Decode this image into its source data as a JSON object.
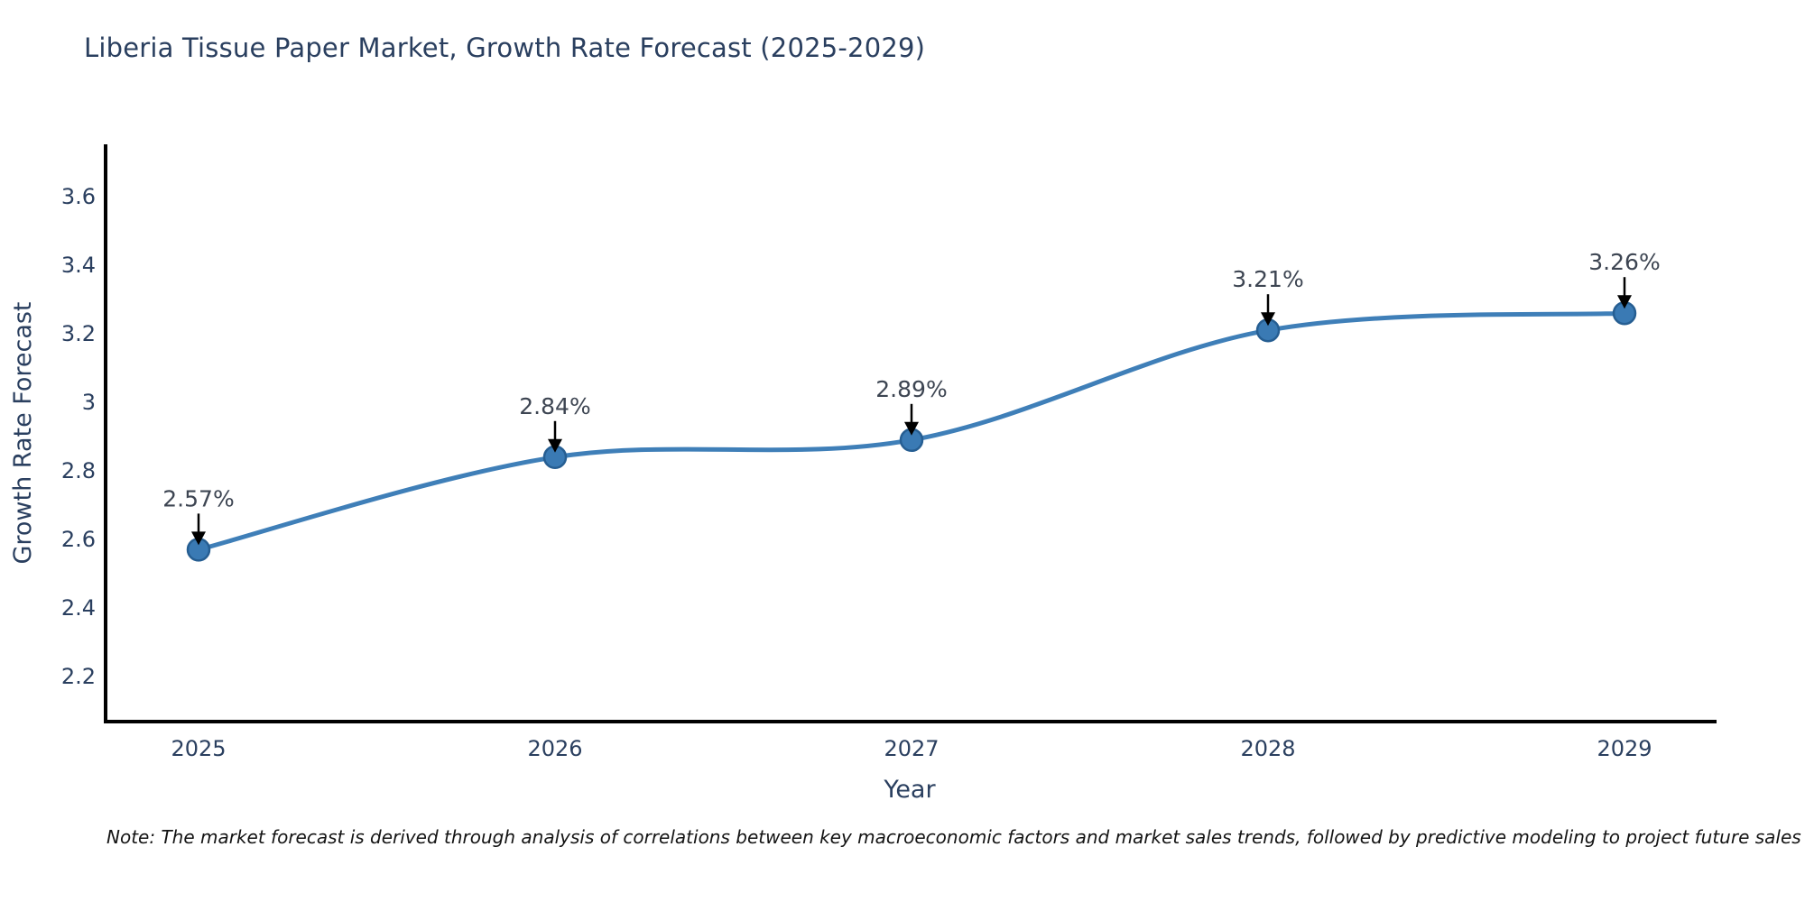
{
  "chart_data": {
    "type": "line",
    "title": "Liberia Tissue Paper Market, Growth Rate Forecast (2025-2029)",
    "categories": [
      "2025",
      "2026",
      "2027",
      "2028",
      "2029"
    ],
    "series": [
      {
        "name": "Growth Rate Forecast",
        "values": [
          2.57,
          2.84,
          2.89,
          3.21,
          3.26
        ],
        "point_labels": [
          "2.57%",
          "2.84%",
          "2.89%",
          "3.21%",
          "3.26%"
        ]
      }
    ],
    "xlabel": "Year",
    "ylabel": "Growth Rate Forecast",
    "yticks": [
      2.2,
      2.4,
      2.6,
      2.8,
      3,
      3.2,
      3.4,
      3.6
    ],
    "ylim": [
      2.07,
      3.76
    ],
    "grid": false,
    "legend_position": "none",
    "line_shape": "spline",
    "marker": "circle",
    "annotation_arrows": true
  },
  "note": "Note: The market forecast is derived through analysis of correlations between key macroeconomic factors and market sales trends, followed by predictive modeling to project future sales",
  "colors": {
    "title_text": "#2a3f5f",
    "tick_text": "#2a3f5f",
    "annotation_text": "#3d4552",
    "line": "#3f7fb8",
    "marker_fill": "#3a7ab4",
    "marker_edge": "#265e92",
    "axis": "#000000",
    "arrow": "#000000",
    "note_text": "#141414",
    "background": "#ffffff"
  }
}
